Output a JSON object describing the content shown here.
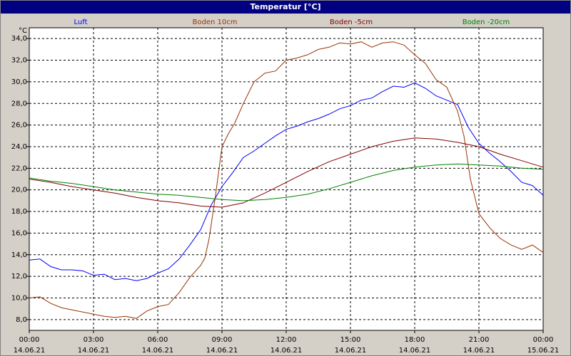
{
  "window": {
    "title": "Temperatur [°C]"
  },
  "chart_data": {
    "type": "line",
    "title": "Temperatur [°C]",
    "ylabel": "°C",
    "ylim": [
      7.0,
      35.0
    ],
    "xlim_hours": [
      0,
      24
    ],
    "grid": true,
    "legend_placement": "top",
    "yticks": [
      "8,0",
      "10,0",
      "12,0",
      "14,0",
      "16,0",
      "18,0",
      "20,0",
      "22,0",
      "24,0",
      "26,0",
      "28,0",
      "30,0",
      "32,0",
      "34,0"
    ],
    "xticks": [
      {
        "time": "00:00",
        "date": "14.06.21"
      },
      {
        "time": "03:00",
        "date": "14.06.21"
      },
      {
        "time": "06:00",
        "date": "14.06.21"
      },
      {
        "time": "09:00",
        "date": "14.06.21"
      },
      {
        "time": "12:00",
        "date": "14.06.21"
      },
      {
        "time": "15:00",
        "date": "14.06.21"
      },
      {
        "time": "18:00",
        "date": "14.06.21"
      },
      {
        "time": "21:00",
        "date": "14.06.21"
      },
      {
        "time": "00:00",
        "date": "15.06.21"
      }
    ],
    "series": [
      {
        "name": "Luft",
        "color": "#0000ff",
        "points": [
          [
            0,
            13.5
          ],
          [
            0.5,
            13.6
          ],
          [
            1,
            12.9
          ],
          [
            1.5,
            12.6
          ],
          [
            2,
            12.6
          ],
          [
            2.5,
            12.5
          ],
          [
            3,
            12.1
          ],
          [
            3.5,
            12.2
          ],
          [
            4,
            11.7
          ],
          [
            4.5,
            11.8
          ],
          [
            5,
            11.6
          ],
          [
            5.5,
            11.8
          ],
          [
            6,
            12.3
          ],
          [
            6.5,
            12.7
          ],
          [
            7,
            13.6
          ],
          [
            7.5,
            14.9
          ],
          [
            8,
            16.3
          ],
          [
            8.5,
            18.6
          ],
          [
            9,
            20.3
          ],
          [
            9.5,
            21.6
          ],
          [
            10,
            23.0
          ],
          [
            10.5,
            23.6
          ],
          [
            11,
            24.3
          ],
          [
            11.5,
            25.0
          ],
          [
            12,
            25.6
          ],
          [
            12.5,
            25.9
          ],
          [
            13,
            26.3
          ],
          [
            13.5,
            26.6
          ],
          [
            14,
            27.0
          ],
          [
            14.5,
            27.5
          ],
          [
            15,
            27.8
          ],
          [
            15.5,
            28.3
          ],
          [
            16,
            28.5
          ],
          [
            16.5,
            29.1
          ],
          [
            17,
            29.6
          ],
          [
            17.5,
            29.5
          ],
          [
            18,
            29.9
          ],
          [
            18.5,
            29.4
          ],
          [
            19,
            28.7
          ],
          [
            19.5,
            28.3
          ],
          [
            20,
            27.9
          ],
          [
            20.5,
            25.8
          ],
          [
            21,
            24.3
          ],
          [
            21.5,
            23.4
          ],
          [
            22,
            22.6
          ],
          [
            22.5,
            21.7
          ],
          [
            23,
            20.7
          ],
          [
            23.5,
            20.4
          ],
          [
            24,
            19.5
          ]
        ]
      },
      {
        "name": "Boden 10cm",
        "color": "#993300",
        "points": [
          [
            0,
            10.0
          ],
          [
            0.5,
            10.1
          ],
          [
            1,
            9.5
          ],
          [
            1.5,
            9.1
          ],
          [
            2,
            8.9
          ],
          [
            2.5,
            8.7
          ],
          [
            3,
            8.5
          ],
          [
            3.5,
            8.3
          ],
          [
            4,
            8.2
          ],
          [
            4.5,
            8.3
          ],
          [
            5,
            8.1
          ],
          [
            5.5,
            8.8
          ],
          [
            6,
            9.2
          ],
          [
            6.5,
            9.4
          ],
          [
            7,
            10.5
          ],
          [
            7.5,
            11.9
          ],
          [
            8,
            13.0
          ],
          [
            8.2,
            13.7
          ],
          [
            8.4,
            15.5
          ],
          [
            8.7,
            19.5
          ],
          [
            9,
            24.0
          ],
          [
            9.3,
            25.2
          ],
          [
            9.6,
            26.2
          ],
          [
            10,
            28.0
          ],
          [
            10.5,
            30.0
          ],
          [
            11,
            30.8
          ],
          [
            11.5,
            31.0
          ],
          [
            12,
            32.0
          ],
          [
            12.5,
            32.2
          ],
          [
            13,
            32.5
          ],
          [
            13.5,
            33.0
          ],
          [
            14,
            33.2
          ],
          [
            14.5,
            33.6
          ],
          [
            15,
            33.5
          ],
          [
            15.5,
            33.7
          ],
          [
            16,
            33.2
          ],
          [
            16.5,
            33.6
          ],
          [
            17,
            33.7
          ],
          [
            17.5,
            33.4
          ],
          [
            18,
            32.5
          ],
          [
            18.5,
            31.7
          ],
          [
            19,
            30.2
          ],
          [
            19.5,
            29.5
          ],
          [
            20,
            27.3
          ],
          [
            20.3,
            25.0
          ],
          [
            20.6,
            21.0
          ],
          [
            21,
            17.8
          ],
          [
            21.5,
            16.5
          ],
          [
            22,
            15.5
          ],
          [
            22.5,
            14.9
          ],
          [
            23,
            14.5
          ],
          [
            23.5,
            14.9
          ],
          [
            24,
            14.2
          ]
        ]
      },
      {
        "name": "Boden -5cm",
        "color": "#800000",
        "points": [
          [
            0,
            21.0
          ],
          [
            1,
            20.7
          ],
          [
            2,
            20.3
          ],
          [
            3,
            20.0
          ],
          [
            4,
            19.7
          ],
          [
            5,
            19.3
          ],
          [
            6,
            19.0
          ],
          [
            7,
            18.8
          ],
          [
            8,
            18.5
          ],
          [
            9,
            18.4
          ],
          [
            10,
            18.8
          ],
          [
            11,
            19.7
          ],
          [
            12,
            20.7
          ],
          [
            13,
            21.7
          ],
          [
            14,
            22.6
          ],
          [
            15,
            23.3
          ],
          [
            16,
            24.0
          ],
          [
            17,
            24.5
          ],
          [
            18,
            24.8
          ],
          [
            19,
            24.7
          ],
          [
            20,
            24.4
          ],
          [
            21,
            24.0
          ],
          [
            22,
            23.3
          ],
          [
            23,
            22.7
          ],
          [
            24,
            22.1
          ]
        ]
      },
      {
        "name": "Boden -20cm",
        "color": "#008000",
        "points": [
          [
            0,
            21.1
          ],
          [
            1,
            20.8
          ],
          [
            2,
            20.6
          ],
          [
            3,
            20.3
          ],
          [
            4,
            20.0
          ],
          [
            5,
            19.8
          ],
          [
            6,
            19.6
          ],
          [
            7,
            19.5
          ],
          [
            8,
            19.3
          ],
          [
            9,
            19.1
          ],
          [
            10,
            19.0
          ],
          [
            11,
            19.1
          ],
          [
            12,
            19.3
          ],
          [
            13,
            19.6
          ],
          [
            14,
            20.1
          ],
          [
            15,
            20.7
          ],
          [
            16,
            21.3
          ],
          [
            17,
            21.8
          ],
          [
            18,
            22.1
          ],
          [
            19,
            22.3
          ],
          [
            20,
            22.4
          ],
          [
            21,
            22.3
          ],
          [
            22,
            22.2
          ],
          [
            23,
            22.0
          ],
          [
            24,
            21.9
          ]
        ]
      }
    ]
  }
}
